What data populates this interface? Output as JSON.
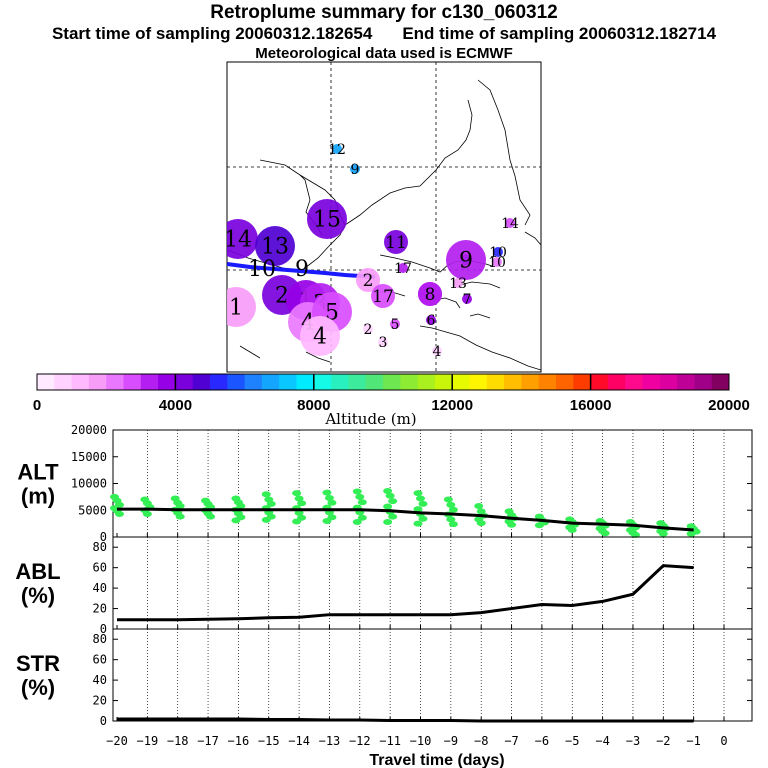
{
  "title": {
    "line1": "Retroplume summary for c130_060312",
    "start": "Start time of sampling 20060312.182654",
    "end": "End time of sampling 20060312.182714",
    "line3": "Meteorological data used is ECMWF"
  },
  "colors": {
    "ground_track": "#1a1aff",
    "alt_points": "#33ee55",
    "line": "#000000"
  },
  "chart_data": [
    {
      "type": "map",
      "title": "Retroplume cluster map",
      "clusters": [
        {
          "label": "12",
          "alt": 6800,
          "size": 1
        },
        {
          "label": "9",
          "alt": 6800,
          "size": 1
        },
        {
          "label": "15",
          "alt": 4300,
          "size": 3
        },
        {
          "label": "14",
          "alt": 4400,
          "size": 3
        },
        {
          "label": "13",
          "alt": 4600,
          "size": 3
        },
        {
          "label": "11",
          "alt": 4300,
          "size": 2
        },
        {
          "label": "14",
          "alt": 2600,
          "size": 1
        },
        {
          "label": "10",
          "alt": 5200,
          "size": 1
        },
        {
          "label": "9",
          "alt": 5100,
          "size": 1
        },
        {
          "label": "17",
          "alt": 3100,
          "size": 1
        },
        {
          "label": "9",
          "alt": 3000,
          "size": 3
        },
        {
          "label": "8",
          "alt": 3400,
          "size": 2
        },
        {
          "label": "10",
          "alt": 2000,
          "size": 1
        },
        {
          "label": "1",
          "alt": 1500,
          "size": 3
        },
        {
          "label": "2",
          "alt": 4000,
          "size": 3
        },
        {
          "label": "1",
          "alt": 3500,
          "size": 3
        },
        {
          "label": "3",
          "alt": 3000,
          "size": 3
        },
        {
          "label": "4",
          "alt": 2000,
          "size": 3
        },
        {
          "label": "5",
          "alt": 2500,
          "size": 3
        },
        {
          "label": "2",
          "alt": 1500,
          "size": 2
        },
        {
          "label": "17",
          "alt": 2800,
          "size": 2
        },
        {
          "label": "13",
          "alt": 1800,
          "size": 1
        },
        {
          "label": "8",
          "alt": 3400,
          "size": 2
        },
        {
          "label": "7",
          "alt": 3600,
          "size": 1
        },
        {
          "label": "6",
          "alt": 3700,
          "size": 1
        },
        {
          "label": "5",
          "alt": 2500,
          "size": 1
        },
        {
          "label": "2",
          "alt": 800,
          "size": 1
        },
        {
          "label": "3",
          "alt": 500,
          "size": 1
        },
        {
          "label": "4",
          "alt": 500,
          "size": 1
        },
        {
          "label": "4",
          "alt": 1200,
          "size": 3
        }
      ],
      "colorbar": {
        "min": 0,
        "max": 20000,
        "tick_labels": [
          "0",
          "4000",
          "8000",
          "12000",
          "16000",
          "20000"
        ],
        "label": "Altitude (m)",
        "colors": [
          "#ffeaff",
          "#ffd2ff",
          "#ffb9ff",
          "#f79cf7",
          "#ea78ff",
          "#d84dff",
          "#b41ef0",
          "#9600e6",
          "#7a00dc",
          "#5000d2",
          "#2828ff",
          "#1a55ff",
          "#1e82ff",
          "#14a5ff",
          "#0ac8ff",
          "#00ebff",
          "#14fae6",
          "#28f0be",
          "#3ceb9b",
          "#50e678",
          "#6ee650",
          "#8ceb32",
          "#aaf01e",
          "#c8f50a",
          "#e6fa00",
          "#fff500",
          "#ffdc00",
          "#ffbe00",
          "#ffa000",
          "#ff8200",
          "#ff6400",
          "#ff3c00",
          "#ff0a28",
          "#ff0064",
          "#ff0a8c",
          "#f000a0",
          "#dc00a0",
          "#be0096",
          "#a00087",
          "#82005f"
        ]
      }
    },
    {
      "type": "scatter+line",
      "ylabel": "ALT\n(m)",
      "ylabel_line1": "ALT",
      "ylabel_line2": "(m)",
      "ylim": [
        0,
        20000
      ],
      "yticks": [
        0,
        5000,
        10000,
        15000,
        20000
      ],
      "x": [
        -20,
        -19,
        -18,
        -17,
        -16,
        -15,
        -14,
        -13,
        -12,
        -11,
        -10,
        -9,
        -8,
        -7,
        -6,
        -5,
        -4,
        -3,
        -2,
        -1
      ],
      "median": [
        5200,
        5200,
        5100,
        5100,
        5100,
        5100,
        5100,
        5100,
        5100,
        4900,
        4500,
        4300,
        4000,
        3500,
        3100,
        2600,
        2400,
        2200,
        1700,
        1300
      ],
      "scatter": [
        [
          7500,
          6800,
          6000,
          5400,
          4900,
          4300
        ],
        [
          7000,
          6300,
          5600,
          5000,
          4300
        ],
        [
          7200,
          6400,
          5800,
          5100,
          4500,
          3800
        ],
        [
          6800,
          6200,
          5600,
          5000,
          4400,
          3800
        ],
        [
          7200,
          6500,
          5800,
          5100,
          4400,
          3700,
          3100
        ],
        [
          8000,
          7000,
          6200,
          5400,
          4600,
          3800,
          3200
        ],
        [
          8200,
          7200,
          6300,
          5400,
          4500,
          3600,
          2900
        ],
        [
          8300,
          7300,
          6400,
          5500,
          4600,
          3700,
          3000
        ],
        [
          8500,
          7500,
          6500,
          5500,
          4600,
          3600,
          2800
        ],
        [
          8600,
          7700,
          6700,
          5700,
          4700,
          3800,
          2800
        ],
        [
          8200,
          7200,
          6200,
          5200,
          4300,
          3400,
          2500
        ],
        [
          7000,
          6000,
          5100,
          4200,
          3300,
          2400
        ],
        [
          5800,
          4800,
          4000,
          3300,
          2600
        ],
        [
          4800,
          4100,
          3500,
          2900,
          2300
        ],
        [
          3800,
          3200,
          2700,
          2200
        ],
        [
          3300,
          2800,
          2300,
          1800,
          1300
        ],
        [
          3000,
          2600,
          2100,
          1600,
          1100,
          700
        ],
        [
          2800,
          2300,
          1800,
          1300,
          800,
          400
        ],
        [
          2600,
          2100,
          1600,
          1100,
          600
        ],
        [
          2000,
          1500,
          1000,
          600
        ]
      ]
    },
    {
      "type": "line",
      "ylabel_line1": "ABL",
      "ylabel_line2": "(%)",
      "ylim": [
        0,
        90
      ],
      "yticks": [
        0,
        20,
        40,
        60,
        80
      ],
      "x": [
        -20,
        -19,
        -18,
        -17,
        -16,
        -15,
        -14,
        -13,
        -12,
        -11,
        -10,
        -9,
        -8,
        -7,
        -6,
        -5,
        -4,
        -3,
        -2,
        -1
      ],
      "values": [
        9,
        9,
        9,
        9.5,
        10,
        11,
        11.5,
        14,
        14,
        14,
        14,
        14,
        16,
        20,
        24,
        23,
        27,
        34,
        62,
        60
      ]
    },
    {
      "type": "line",
      "ylabel_line1": "STR",
      "ylabel_line2": "(%)",
      "ylim": [
        0,
        90
      ],
      "yticks": [
        0,
        20,
        40,
        60,
        80
      ],
      "x": [
        -20,
        -19,
        -18,
        -17,
        -16,
        -15,
        -14,
        -13,
        -12,
        -11,
        -10,
        -9,
        -8,
        -7,
        -6,
        -5,
        -4,
        -3,
        -2,
        -1
      ],
      "values": [
        2,
        2,
        2,
        2,
        2,
        1.5,
        1.5,
        1,
        1,
        0.5,
        0.5,
        0.5,
        0,
        0,
        0,
        0,
        0,
        0,
        0,
        0
      ]
    }
  ],
  "xaxis": {
    "label": "Travel time (days)",
    "tick_labels": [
      "−20",
      "−19",
      "−18",
      "−17",
      "−16",
      "−15",
      "−14",
      "−13",
      "−12",
      "−11",
      "−10",
      "−9",
      "−8",
      "−7",
      "−6",
      "−5",
      "−4",
      "−3",
      "−2",
      "−1",
      "0"
    ]
  }
}
